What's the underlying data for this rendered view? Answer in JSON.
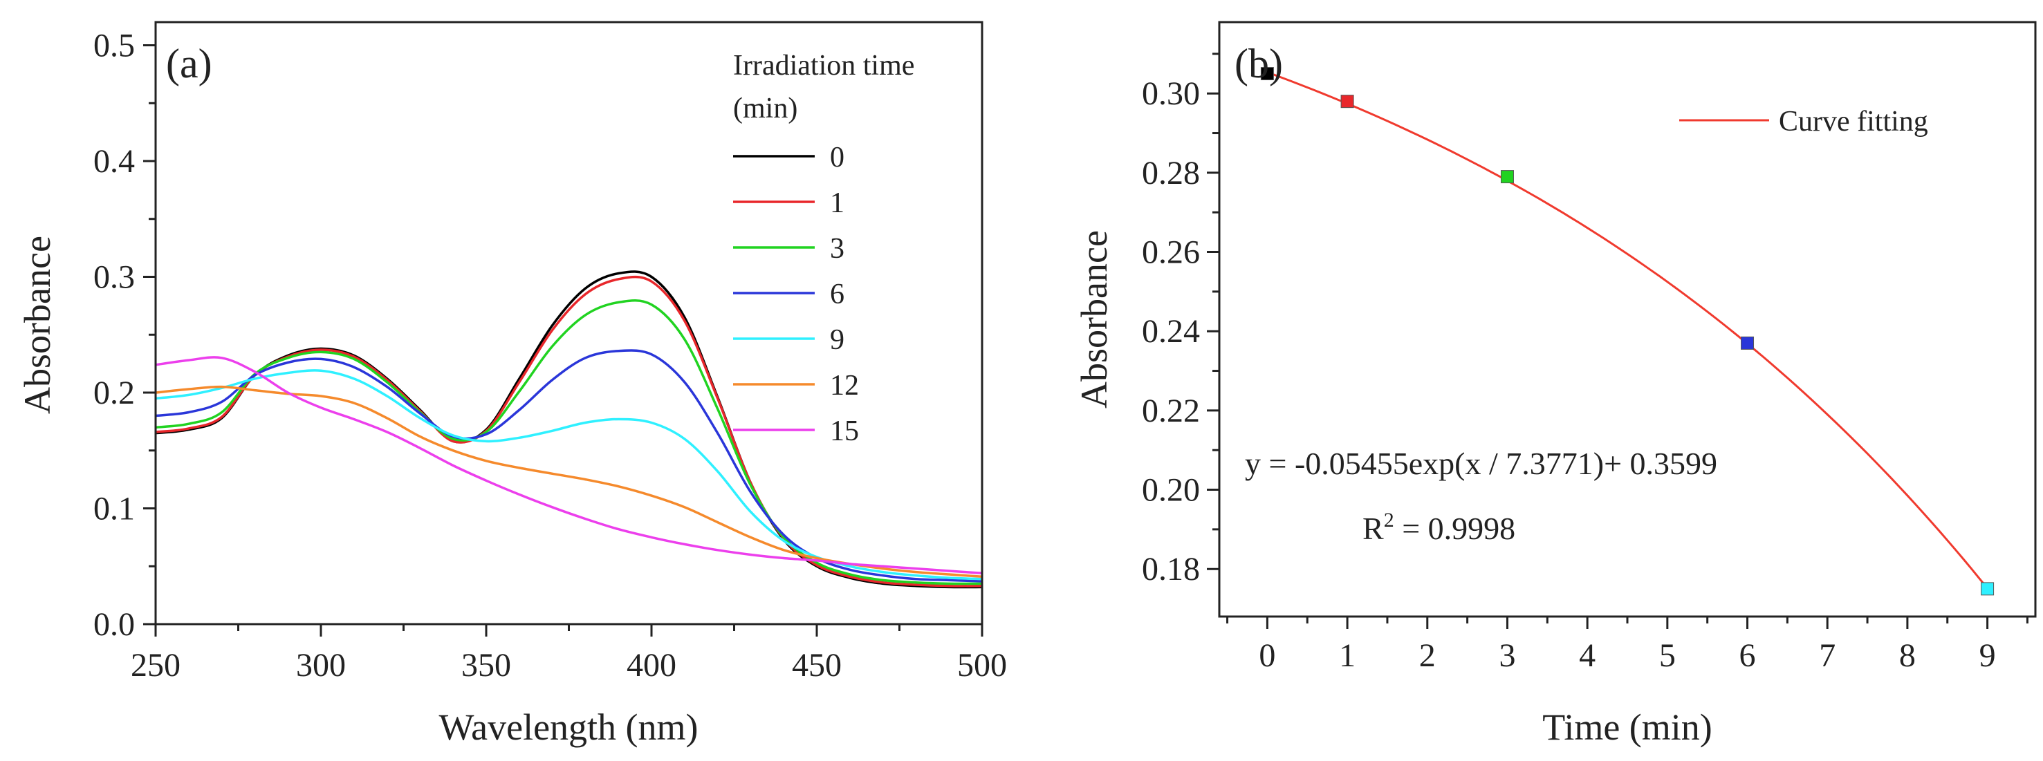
{
  "chart_data": [
    {
      "type": "line",
      "panel_label": "(a)",
      "xlabel": "Wavelength (nm)",
      "ylabel": "Absorbance",
      "xlim": [
        250,
        500
      ],
      "ylim": [
        0.0,
        0.52
      ],
      "x_ticks": [
        250,
        300,
        350,
        400,
        450,
        500
      ],
      "y_ticks": [
        0.0,
        0.1,
        0.2,
        0.3,
        0.4,
        0.5
      ],
      "legend_title_line1": "Irradiation time",
      "legend_title_line2": "(min)",
      "legend_position": "top-right",
      "x": [
        250,
        260,
        270,
        280,
        290,
        300,
        310,
        320,
        330,
        340,
        350,
        360,
        370,
        380,
        390,
        400,
        410,
        420,
        430,
        440,
        450,
        460,
        470,
        480,
        490,
        500
      ],
      "series": [
        {
          "name": "0",
          "color": "#000000",
          "values": [
            0.165,
            0.168,
            0.178,
            0.215,
            0.232,
            0.238,
            0.232,
            0.212,
            0.185,
            0.158,
            0.168,
            0.212,
            0.258,
            0.29,
            0.303,
            0.3,
            0.265,
            0.196,
            0.122,
            0.073,
            0.05,
            0.04,
            0.035,
            0.033,
            0.032,
            0.032
          ]
        },
        {
          "name": "1",
          "color": "#e8272b",
          "values": [
            0.166,
            0.169,
            0.179,
            0.215,
            0.231,
            0.237,
            0.231,
            0.211,
            0.184,
            0.158,
            0.167,
            0.209,
            0.254,
            0.285,
            0.298,
            0.296,
            0.262,
            0.195,
            0.122,
            0.074,
            0.051,
            0.041,
            0.036,
            0.034,
            0.033,
            0.033
          ]
        },
        {
          "name": "3",
          "color": "#21d321",
          "values": [
            0.17,
            0.173,
            0.183,
            0.216,
            0.23,
            0.235,
            0.229,
            0.209,
            0.183,
            0.16,
            0.166,
            0.201,
            0.24,
            0.267,
            0.278,
            0.276,
            0.246,
            0.186,
            0.12,
            0.075,
            0.053,
            0.043,
            0.038,
            0.036,
            0.035,
            0.035
          ]
        },
        {
          "name": "6",
          "color": "#2a36d9",
          "values": [
            0.18,
            0.183,
            0.192,
            0.215,
            0.226,
            0.229,
            0.222,
            0.205,
            0.182,
            0.162,
            0.164,
            0.185,
            0.211,
            0.23,
            0.236,
            0.233,
            0.209,
            0.165,
            0.114,
            0.077,
            0.057,
            0.047,
            0.042,
            0.039,
            0.038,
            0.037
          ]
        },
        {
          "name": "9",
          "color": "#2ff0ff",
          "values": [
            0.195,
            0.198,
            0.204,
            0.212,
            0.217,
            0.219,
            0.212,
            0.197,
            0.178,
            0.163,
            0.158,
            0.161,
            0.167,
            0.174,
            0.177,
            0.174,
            0.16,
            0.132,
            0.097,
            0.072,
            0.058,
            0.05,
            0.045,
            0.042,
            0.04,
            0.039
          ]
        },
        {
          "name": "12",
          "color": "#f58a2c",
          "values": [
            0.2,
            0.203,
            0.205,
            0.202,
            0.199,
            0.197,
            0.191,
            0.178,
            0.162,
            0.15,
            0.141,
            0.135,
            0.13,
            0.125,
            0.119,
            0.111,
            0.101,
            0.088,
            0.075,
            0.064,
            0.057,
            0.052,
            0.048,
            0.045,
            0.043,
            0.041
          ]
        },
        {
          "name": "15",
          "color": "#ec3fec",
          "values": [
            0.224,
            0.228,
            0.23,
            0.218,
            0.2,
            0.187,
            0.177,
            0.166,
            0.152,
            0.137,
            0.124,
            0.112,
            0.101,
            0.091,
            0.082,
            0.075,
            0.069,
            0.064,
            0.06,
            0.057,
            0.055,
            0.052,
            0.05,
            0.048,
            0.046,
            0.044
          ]
        }
      ]
    },
    {
      "type": "scatter",
      "panel_label": "(b)",
      "xlabel": "Time (min)",
      "ylabel": "Absorbance",
      "xlim": [
        -0.6,
        9.6
      ],
      "ylim": [
        0.168,
        0.318
      ],
      "x_ticks": [
        0,
        1,
        2,
        3,
        4,
        5,
        6,
        7,
        8,
        9
      ],
      "y_ticks": [
        0.18,
        0.2,
        0.22,
        0.24,
        0.26,
        0.28,
        0.3
      ],
      "y_tick_labels": [
        "0.18",
        "0.20",
        "0.22",
        "0.24",
        "0.26",
        "0.28",
        "0.30"
      ],
      "points": [
        {
          "x": 0,
          "y": 0.305,
          "color": "#000000"
        },
        {
          "x": 1,
          "y": 0.298,
          "color": "#e8272b"
        },
        {
          "x": 3,
          "y": 0.279,
          "color": "#21d321"
        },
        {
          "x": 6,
          "y": 0.237,
          "color": "#2a36d9"
        },
        {
          "x": 9,
          "y": 0.175,
          "color": "#2ff0ff"
        }
      ],
      "fit": {
        "name": "Curve fitting",
        "color": "#f03a2e",
        "a": -0.05455,
        "b": 7.3771,
        "c": 0.3599,
        "x_range": [
          0,
          9
        ]
      },
      "legend_position": "top-right",
      "equation": "y = -0.05455exp(x / 7.3771)+ 0.3599",
      "r_squared_prefix": "R",
      "r_squared_sup": "2",
      "r_squared_value": " = 0.9998"
    }
  ]
}
